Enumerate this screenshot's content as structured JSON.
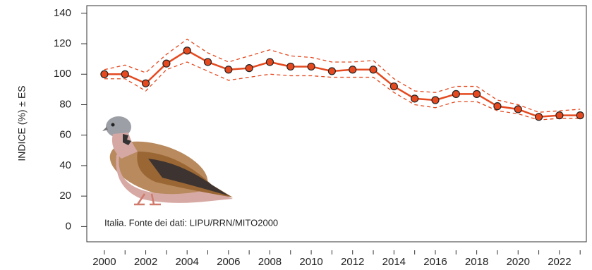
{
  "chart_data": {
    "type": "line",
    "y_label": "INDICE (%) ± ES",
    "annotation": "Italia. Fonte dei dati: LIPU/RRN/MITO2000",
    "x": [
      2000,
      2001,
      2002,
      2003,
      2004,
      2005,
      2006,
      2007,
      2008,
      2009,
      2010,
      2011,
      2012,
      2013,
      2014,
      2015,
      2016,
      2017,
      2018,
      2019,
      2020,
      2021,
      2022,
      2023
    ],
    "series": [
      {
        "color": "#e4491f",
        "marker": true,
        "dashed": false,
        "values": [
          100,
          100,
          94,
          107,
          115.5,
          108,
          103,
          104,
          108,
          105,
          105,
          102,
          103,
          103,
          92,
          84,
          83,
          87,
          87,
          79,
          77,
          72,
          73,
          73
        ]
      },
      {
        "color": "#e4491f",
        "marker": false,
        "dashed": true,
        "values": [
          103,
          106,
          101,
          113,
          123,
          114,
          108,
          112,
          116,
          112,
          111,
          108,
          108,
          109,
          97,
          89,
          88,
          92,
          92,
          83,
          80,
          75,
          76,
          77
        ]
      },
      {
        "color": "#e4491f",
        "marker": false,
        "dashed": true,
        "values": [
          97,
          97,
          89,
          103,
          108,
          102,
          96,
          98,
          100,
          99,
          99,
          98,
          98,
          98,
          88,
          80,
          78,
          82,
          82,
          76,
          74,
          70,
          71,
          71
        ]
      }
    ],
    "xlim": [
      1999.15,
      2023.3
    ],
    "xticks": [
      2000,
      2002,
      2004,
      2006,
      2008,
      2010,
      2012,
      2014,
      2016,
      2018,
      2020,
      2022
    ],
    "ylim": [
      -10,
      145
    ],
    "yticks": [
      0,
      20,
      40,
      60,
      80,
      100,
      120,
      140
    ]
  }
}
